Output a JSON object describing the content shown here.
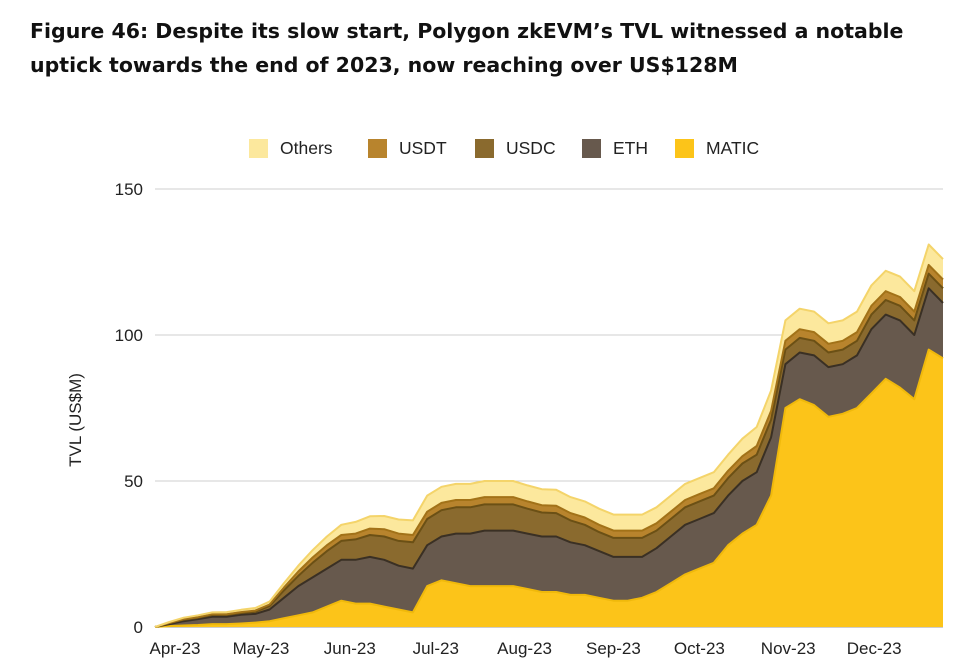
{
  "title": "Figure 46: Despite its slow start, Polygon zkEVM’s TVL witnessed a notable uptick towards the end of 2023, now reaching over US$128M",
  "chart_data": {
    "type": "area",
    "stacked": true,
    "ylabel": "TVL (US$M)",
    "xlabel": "",
    "ylim": [
      0,
      150
    ],
    "yticks": [
      0,
      50,
      100,
      150
    ],
    "grid": true,
    "legend_position": "top",
    "x_day_range": [
      0,
      275
    ],
    "xticks": [
      {
        "label": "Apr-23",
        "day": 0
      },
      {
        "label": "May-23",
        "day": 30
      },
      {
        "label": "Jun-23",
        "day": 61
      },
      {
        "label": "Jul-23",
        "day": 91
      },
      {
        "label": "Aug-23",
        "day": 122
      },
      {
        "label": "Sep-23",
        "day": 153
      },
      {
        "label": "Oct-23",
        "day": 183
      },
      {
        "label": "Nov-23",
        "day": 214
      },
      {
        "label": "Dec-23",
        "day": 244
      }
    ],
    "legend_order": [
      "Others",
      "USDT",
      "USDC",
      "ETH",
      "MATIC"
    ],
    "days": [
      0,
      5,
      10,
      15,
      20,
      25,
      30,
      35,
      40,
      45,
      50,
      55,
      60,
      65,
      70,
      75,
      80,
      85,
      90,
      95,
      100,
      105,
      110,
      115,
      120,
      125,
      130,
      135,
      140,
      145,
      150,
      155,
      160,
      165,
      170,
      175,
      180,
      185,
      190,
      195,
      200,
      205,
      210,
      215,
      220,
      225,
      230,
      235,
      240,
      245,
      250,
      255,
      260,
      265,
      270,
      275
    ],
    "series": [
      {
        "name": "MATIC",
        "color": "#FCC419",
        "edge": "#F0B90B",
        "values": [
          0,
          0.3,
          0.5,
          0.7,
          1,
          1,
          1.2,
          1.5,
          2,
          3,
          4,
          5,
          7,
          9,
          8,
          8,
          7,
          6,
          5,
          14,
          16,
          15,
          14,
          14,
          14,
          14,
          13,
          12,
          12,
          11,
          11,
          10,
          9,
          9,
          10,
          12,
          15,
          18,
          20,
          22,
          28,
          32,
          35,
          45,
          75,
          78,
          76,
          72,
          73,
          75,
          80,
          85,
          82,
          78,
          95,
          92
        ]
      },
      {
        "name": "ETH",
        "color": "#67594D",
        "edge": "#3A3024",
        "values": [
          0,
          0.7,
          1.5,
          2,
          2.5,
          2.5,
          3,
          3,
          4,
          7,
          10,
          12,
          13,
          14,
          15,
          16,
          16,
          15,
          15,
          14,
          15,
          17,
          18,
          19,
          19,
          19,
          19,
          19,
          19,
          18,
          17,
          16,
          15,
          15,
          14,
          15,
          16,
          17,
          17,
          17,
          17,
          18,
          18,
          20,
          15,
          16,
          17,
          17,
          17,
          18,
          22,
          22,
          23,
          22,
          21,
          19
        ]
      },
      {
        "name": "USDC",
        "color": "#8A6A2E",
        "edge": "#6B5015",
        "values": [
          0,
          0.3,
          0.5,
          0.5,
          0.6,
          0.6,
          0.6,
          0.7,
          1.2,
          2.5,
          3.5,
          5,
          6,
          6.5,
          7,
          7.5,
          8,
          8.5,
          9,
          9,
          9,
          9,
          9,
          9,
          9,
          9,
          8.5,
          8.2,
          8,
          7.5,
          7,
          6.5,
          6.5,
          6.5,
          6.5,
          6,
          6,
          6,
          6,
          6,
          6,
          6,
          6,
          6,
          5,
          5,
          5,
          5,
          5,
          5,
          5,
          5,
          5,
          5,
          5,
          5
        ]
      },
      {
        "name": "USDT",
        "color": "#B8842D",
        "edge": "#A27218",
        "values": [
          0,
          0.1,
          0.2,
          0.2,
          0.3,
          0.3,
          0.3,
          0.4,
          0.5,
          1,
          1.5,
          1.8,
          2,
          2,
          2,
          2.2,
          2.5,
          2.5,
          2.5,
          2.5,
          2.5,
          2.5,
          2.5,
          2.5,
          2.5,
          2.5,
          2.5,
          2.5,
          2.5,
          2.5,
          2.5,
          2.5,
          2.5,
          2.5,
          2.5,
          2.5,
          2.5,
          2.5,
          2.5,
          2.5,
          2.5,
          2.5,
          3,
          3,
          3,
          3,
          3,
          3,
          3,
          3,
          3,
          3,
          3,
          3,
          3,
          3
        ]
      },
      {
        "name": "Others",
        "color": "#FCE89D",
        "edge": "#F4D46A",
        "values": [
          0,
          0.3,
          0.5,
          0.6,
          0.6,
          0.7,
          0.8,
          0.9,
          1,
          1.5,
          2,
          2.5,
          3,
          3.5,
          4,
          4.2,
          4.5,
          4.8,
          5,
          5.5,
          5.5,
          5.5,
          5.5,
          5.5,
          5.5,
          5.5,
          5.5,
          5.5,
          5.5,
          5.5,
          5.5,
          5.5,
          5.5,
          5.5,
          5.5,
          5.5,
          5.5,
          5.5,
          5.5,
          5.5,
          5.5,
          6,
          6.5,
          7,
          7,
          7,
          7,
          7,
          7,
          7,
          7,
          7,
          7,
          7,
          7,
          7
        ]
      }
    ]
  }
}
